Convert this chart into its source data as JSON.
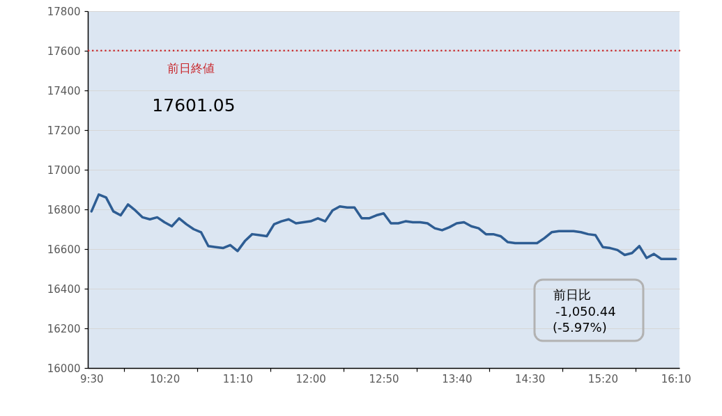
{
  "chart_data": {
    "type": "line",
    "x": [
      9.5,
      9.5833,
      9.6667,
      9.75,
      9.8333,
      9.9167,
      10,
      10.0833,
      10.1667,
      10.25,
      10.3333,
      10.4167,
      10.5,
      10.5833,
      10.6667,
      10.75,
      10.8333,
      10.9167,
      11,
      11.0833,
      11.1667,
      11.25,
      11.3333,
      11.4167,
      11.5,
      11.5833,
      11.6667,
      11.75,
      11.8333,
      11.9167,
      12,
      12.0833,
      12.1667,
      12.25,
      12.3333,
      12.4167,
      12.5,
      12.5833,
      12.6667,
      12.75,
      12.8333,
      12.9167,
      13,
      13.0833,
      13.1667,
      13.25,
      13.3333,
      13.4167,
      13.5,
      13.5833,
      13.6667,
      13.75,
      13.8333,
      13.9167,
      14,
      14.0833,
      14.1667,
      14.25,
      14.3333,
      14.4167,
      14.5,
      14.5833,
      14.6667,
      14.75,
      14.8333,
      14.9167,
      15,
      15.0833,
      15.1667,
      15.25,
      15.3333,
      15.4167,
      15.5,
      15.5833,
      15.6667,
      15.75,
      15.8333,
      15.9167,
      16,
      16.0833,
      16.1667
    ],
    "series": [
      {
        "color": "#2e5d93",
        "values": [
          16790,
          16875,
          16860,
          16790,
          16770,
          16825,
          16795,
          16760,
          16750,
          16760,
          16735,
          16715,
          16755,
          16725,
          16700,
          16685,
          16615,
          16610,
          16605,
          16620,
          16590,
          16640,
          16675,
          16670,
          16665,
          16725,
          16740,
          16750,
          16730,
          16735,
          16740,
          16755,
          16740,
          16795,
          16815,
          16810,
          16810,
          16755,
          16755,
          16770,
          16780,
          16730,
          16730,
          16740,
          16735,
          16735,
          16730,
          16705,
          16695,
          16710,
          16730,
          16735,
          16715,
          16705,
          16675,
          16675,
          16665,
          16635,
          16630,
          16630,
          16630,
          16630,
          16655,
          16685,
          16690,
          16690,
          16690,
          16685,
          16675,
          16670,
          16610,
          16605,
          16595,
          16570,
          16580,
          16615,
          16555,
          16575,
          16550,
          16550,
          16550
        ]
      }
    ],
    "xlim": [
      9.4583,
      16.2083
    ],
    "xticks": [
      {
        "value": 9.5,
        "label": "9:30"
      },
      {
        "value": 9.875,
        "label": null
      },
      {
        "value": 10.3333,
        "label": "10:20"
      },
      {
        "value": 10.7083,
        "label": null
      },
      {
        "value": 11.1667,
        "label": "11:10"
      },
      {
        "value": 11.5417,
        "label": null
      },
      {
        "value": 12,
        "label": "12:00"
      },
      {
        "value": 12.375,
        "label": null
      },
      {
        "value": 12.8333,
        "label": "12:50"
      },
      {
        "value": 13.2083,
        "label": null
      },
      {
        "value": 13.6667,
        "label": "13:40"
      },
      {
        "value": 14.0417,
        "label": null
      },
      {
        "value": 14.5,
        "label": "14:30"
      },
      {
        "value": 14.875,
        "label": null
      },
      {
        "value": 15.3333,
        "label": "15:20"
      },
      {
        "value": 15.7083,
        "label": null
      },
      {
        "value": 16.1667,
        "label": "16:10"
      }
    ],
    "ylim": [
      16000,
      17800
    ],
    "yticks": [
      16000,
      16200,
      16400,
      16600,
      16800,
      17000,
      17200,
      17400,
      17600,
      17800
    ],
    "grid": "y",
    "marker": "none",
    "line_style": "solid",
    "ref_lines": [
      {
        "axis": "y",
        "value": 17601.05,
        "label": "前日終値",
        "color": "#c8282d",
        "line_style": "dotted"
      }
    ],
    "annotations": [
      "17601.05",
      "前日比",
      "-1,050.44",
      "(-5.97%)"
    ]
  }
}
